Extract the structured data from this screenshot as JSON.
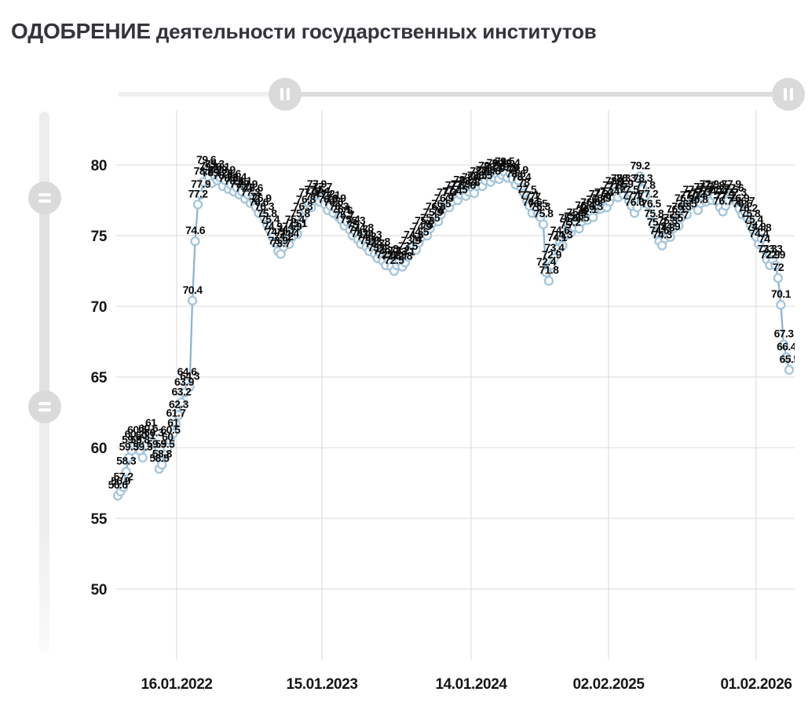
{
  "title": {
    "highlight": "ОДОБРЕНИЕ",
    "rest": "деятельности государственных институтов"
  },
  "icons": {
    "top_slider_handle": "pause-icon",
    "left_slider_handle": "grip-lines-icon"
  },
  "colors": {
    "title_text": "#34353b",
    "line": "#8cb5d3",
    "marker_ring": "#a4c5db",
    "marker_fill": "#ffffff",
    "point_label": "#0b0b0b",
    "grid": "#e0e0e0",
    "axis_text": "#161616",
    "slider_track": "#efefef",
    "slider_range": "#dcdcdc",
    "slider_handle": "#dadada"
  },
  "chart_data": {
    "type": "line",
    "title": "ОДОБРЕНИЕ деятельности государственных институтов",
    "xlabel": "",
    "ylabel": "",
    "grid": true,
    "legend": "none",
    "marker": "open-circle",
    "point_labels": "all",
    "ylim": [
      45,
      84
    ],
    "y_ticks": [
      80,
      75,
      70,
      65,
      60,
      55,
      50
    ],
    "x_ticks": [
      "16.01.2022",
      "15.01.2023",
      "14.01.2024",
      "02.02.2025",
      "01.02.2026"
    ],
    "series": [
      {
        "name": "одобрение",
        "values": [
          56.6,
          56.9,
          57.2,
          58.3,
          59.3,
          59.8,
          60.2,
          60.5,
          59.8,
          59.3,
          60.1,
          60.6,
          61.0,
          60.3,
          59.5,
          58.5,
          58.8,
          59.5,
          60.0,
          60.5,
          61.0,
          61.7,
          62.3,
          63.2,
          63.9,
          64.6,
          64.3,
          70.4,
          74.6,
          77.2,
          77.9,
          78.8,
          79.6,
          79.1,
          78.7,
          79.3,
          78.9,
          79.1,
          78.5,
          78.9,
          78.3,
          78.6,
          78.1,
          78.4,
          77.9,
          78.1,
          77.6,
          77.9,
          77.3,
          77.6,
          77.0,
          76.6,
          76.9,
          76.3,
          75.8,
          75.4,
          74.9,
          74.5,
          73.9,
          73.7,
          74.2,
          74.7,
          74.4,
          74.9,
          75.4,
          75.1,
          75.8,
          76.3,
          76.8,
          77.3,
          77.0,
          77.5,
          77.9,
          77.4,
          77.7,
          77.2,
          76.8,
          77.1,
          76.6,
          76.9,
          76.3,
          76.1,
          75.7,
          76.0,
          75.4,
          75.0,
          75.3,
          74.7,
          74.4,
          74.8,
          74.2,
          73.9,
          74.3,
          73.7,
          73.4,
          73.8,
          73.2,
          72.9,
          73.3,
          72.8,
          72.5,
          72.9,
          73.2,
          72.8,
          73.1,
          73.5,
          73.9,
          74.3,
          74.0,
          74.5,
          74.9,
          75.3,
          75.0,
          75.5,
          75.9,
          76.3,
          76.0,
          76.5,
          76.9,
          77.3,
          77.0,
          77.4,
          77.8,
          77.5,
          77.9,
          78.2,
          77.8,
          78.1,
          78.4,
          78.0,
          78.5,
          78.8,
          78.5,
          78.9,
          79.2,
          78.8,
          79.1,
          79.4,
          79.0,
          79.3,
          79.5,
          79.1,
          79.4,
          79.0,
          78.6,
          78.9,
          78.4,
          78.0,
          77.5,
          77.1,
          76.6,
          77.0,
          76.5,
          76.3,
          75.8,
          72.4,
          71.8,
          72.9,
          73.4,
          74.1,
          74.6,
          74.3,
          75.0,
          75.5,
          75.2,
          75.6,
          75.9,
          75.5,
          76.0,
          76.4,
          76.1,
          76.6,
          76.3,
          76.8,
          77.2,
          76.9,
          77.3,
          77.0,
          77.4,
          77.8,
          78.1,
          77.7,
          78.3,
          77.9,
          78.3,
          77.5,
          77.1,
          76.6,
          77.0,
          79.2,
          78.3,
          77.8,
          77.2,
          76.5,
          75.8,
          75.2,
          74.6,
          74.3,
          74.8,
          75.3,
          74.9,
          75.5,
          76.1,
          75.7,
          76.3,
          76.9,
          76.5,
          77.1,
          77.5,
          77.2,
          76.8,
          77.3,
          77.7,
          77.4,
          77.9,
          77.5,
          77.8,
          77.4,
          77.0,
          76.7,
          77.1,
          77.5,
          77.9,
          77.6,
          77.3,
          76.9,
          76.5,
          76.7,
          76.2,
          75.8,
          75.4,
          74.9,
          74.4,
          74.8,
          74.0,
          73.3,
          72.9,
          73.3,
          72.9,
          72.0,
          70.1,
          67.3,
          66.4,
          65.5
        ]
      }
    ]
  }
}
